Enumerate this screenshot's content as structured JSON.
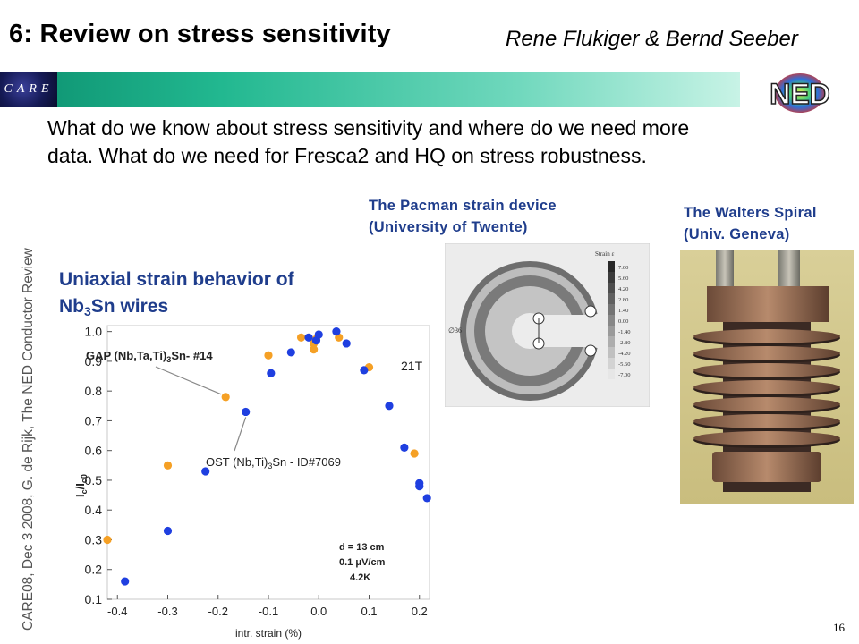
{
  "slide": {
    "title": "6: Review on stress sensitivity",
    "authors": "Rene Flukiger & Bernd Seeber",
    "intro_line1": "What do we know about stress sensitivity and where do we need more",
    "intro_line2": "data. What do we need for Fresca2 and HQ on stress robustness.",
    "side_note": "CARE08, Dec 3 2008, G. de Rijk, The NED Conductor Review",
    "page_number": "16",
    "care_logo_text": "CARE",
    "ned_logo_text": "NED",
    "pacman_line1": "The Pacman strain device",
    "pacman_line2": "(University of Twente)",
    "walters_line1": "The Walters Spiral",
    "walters_line2": "(Univ. Geneva)",
    "uniaxial_line1": "Uniaxial strain behavior of",
    "uniaxial_nb": "Nb",
    "uniaxial_sub": "3",
    "uniaxial_rest": "Sn wires"
  },
  "pacman_figure": {
    "scale_title": "Strain ε",
    "scale_values": [
      "7.00",
      "5.60",
      "4.20",
      "2.80",
      "1.40",
      "0.00",
      "-1.40",
      "-2.80",
      "-4.20",
      "-5.60",
      "-7.00"
    ],
    "diameter_label": "∅36"
  },
  "colors": {
    "blue_title": "#1f3d8c",
    "series_gap": "#f5a025",
    "series_ost": "#1f3fe0",
    "band_start": "#0b8f6e",
    "band_end": "#c8f3e6"
  },
  "chart_data": {
    "type": "scatter",
    "xlabel": "intr. strain (%)",
    "ylabel": "I_c/I_c0",
    "xlim": [
      -0.42,
      0.22
    ],
    "ylim": [
      0.1,
      1.02
    ],
    "xticks": [
      "-0.4",
      "-0.3",
      "-0.2",
      "-0.1",
      "0.0",
      "0.1",
      "0.2"
    ],
    "xtick_values": [
      -0.4,
      -0.3,
      -0.2,
      -0.1,
      0.0,
      0.1,
      0.2
    ],
    "yticks": [
      "0.1",
      "0.2",
      "0.3",
      "0.4",
      "0.5",
      "0.6",
      "0.7",
      "0.8",
      "0.9",
      "1.0"
    ],
    "ytick_values": [
      0.1,
      0.2,
      0.3,
      0.4,
      0.5,
      0.6,
      0.7,
      0.8,
      0.9,
      1.0
    ],
    "grid": false,
    "field_label": "21T",
    "conditions": [
      "d = 13 cm",
      "0.1 μV/cm",
      "4.2K"
    ],
    "series": [
      {
        "name": "GAP (Nb,Ta,Ti)3Sn- #14",
        "label_main": "GAP (Nb,Ta,Ti)",
        "label_sub": "3",
        "label_tail": "Sn- #14",
        "color": "#f5a025",
        "x": [
          -0.42,
          -0.3,
          -0.185,
          -0.1,
          -0.035,
          -0.01,
          -0.01,
          -0.005,
          0.04,
          0.1,
          0.19
        ],
        "y": [
          0.3,
          0.55,
          0.78,
          0.92,
          0.98,
          0.96,
          0.94,
          0.975,
          0.98,
          0.88,
          0.59
        ]
      },
      {
        "name": "OST (Nb,Ti)3Sn - ID#7069",
        "label_main": "OST (Nb,Ti)",
        "label_sub": "3",
        "label_tail": "Sn - ID#7069",
        "color": "#1f3fe0",
        "x": [
          -0.385,
          -0.3,
          -0.225,
          -0.145,
          -0.095,
          -0.055,
          -0.02,
          -0.005,
          0.0,
          0.035,
          0.055,
          0.09,
          0.14,
          0.17,
          0.2,
          0.2,
          0.215
        ],
        "y": [
          0.16,
          0.33,
          0.53,
          0.73,
          0.86,
          0.93,
          0.98,
          0.97,
          0.99,
          1.0,
          0.96,
          0.87,
          0.75,
          0.61,
          0.49,
          0.48,
          0.44
        ]
      }
    ]
  }
}
